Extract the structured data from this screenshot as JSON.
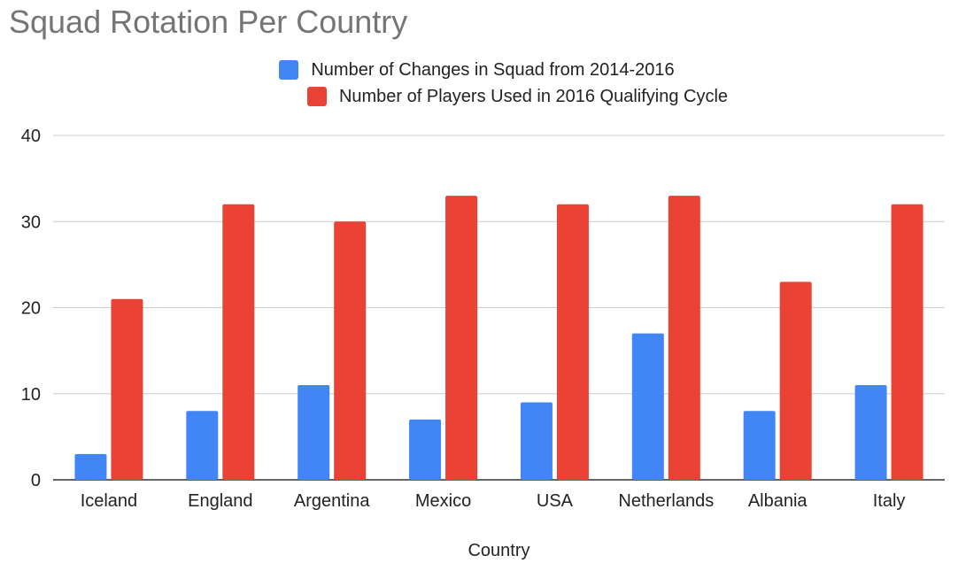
{
  "chart_data": {
    "type": "bar",
    "title": "Squad Rotation Per Country",
    "xlabel": "Country",
    "ylabel": "",
    "categories": [
      "Iceland",
      "England",
      "Argentina",
      "Mexico",
      "USA",
      "Netherlands",
      "Albania",
      "Italy"
    ],
    "series": [
      {
        "name": "Number of Changes in Squad from 2014-2016",
        "color": "#4285f4",
        "values": [
          3,
          8,
          11,
          7,
          9,
          17,
          8,
          11
        ]
      },
      {
        "name": "Number of Players Used in 2016 Qualifying Cycle",
        "color": "#ea4335",
        "values": [
          21,
          32,
          30,
          33,
          32,
          33,
          23,
          32
        ]
      }
    ],
    "ylim": [
      0,
      40
    ],
    "yticks": [
      "0",
      "10",
      "20",
      "30",
      "40"
    ],
    "grid": true,
    "legend_position": "top"
  }
}
